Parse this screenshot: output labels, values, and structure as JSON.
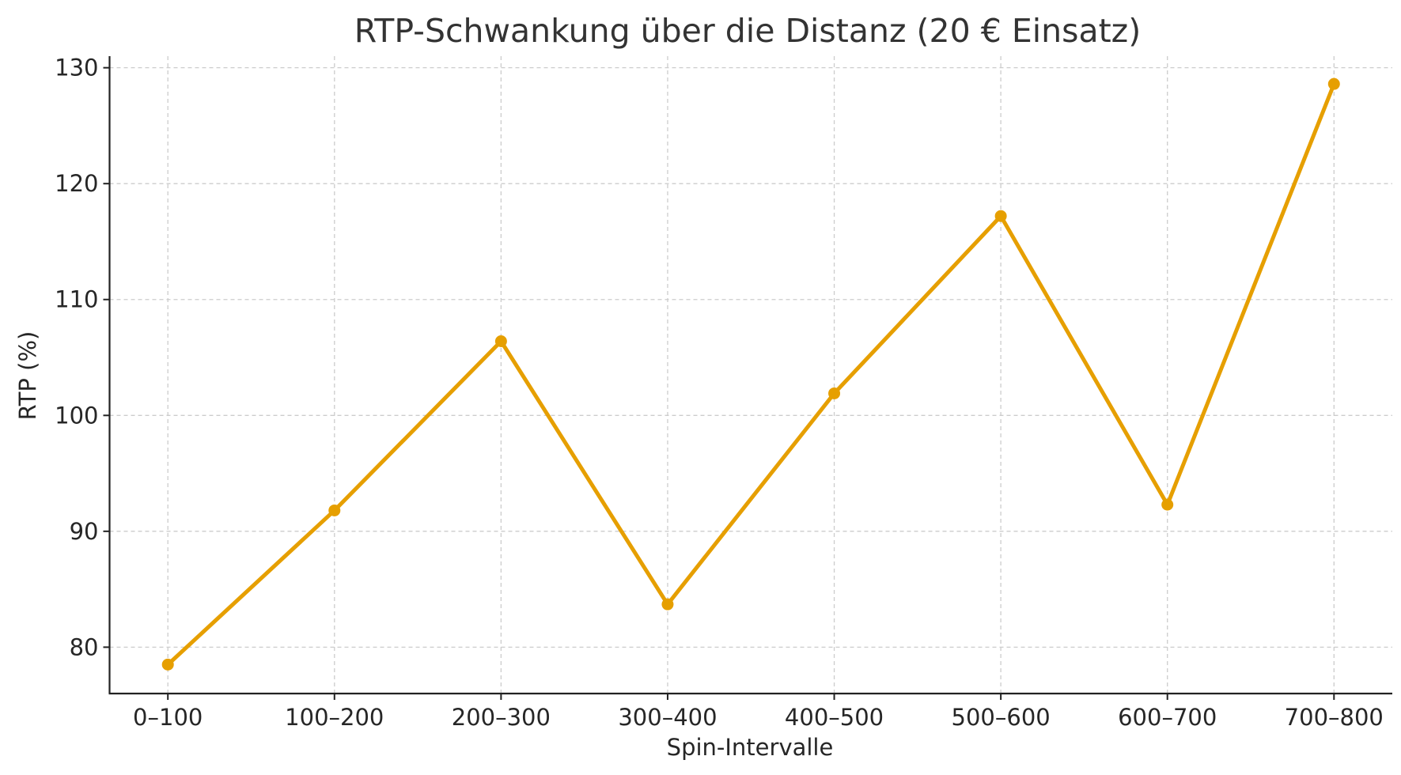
{
  "chart_data": {
    "type": "line",
    "title": "RTP-Schwankung über die Distanz (20 € Einsatz)",
    "xlabel": "Spin-Intervalle",
    "ylabel": "RTP (%)",
    "categories": [
      "0–100",
      "100–200",
      "200–300",
      "300–400",
      "400–500",
      "500–600",
      "600–700",
      "700–800"
    ],
    "series": [
      {
        "values": [
          78.5,
          91.8,
          106.4,
          83.7,
          101.9,
          117.2,
          92.3,
          128.6
        ],
        "color": "#E69F00",
        "marker": "circle"
      }
    ],
    "yticks": [
      80,
      90,
      100,
      110,
      120,
      130
    ],
    "ylim": [
      76,
      131
    ],
    "grid": true,
    "legend": "none"
  }
}
